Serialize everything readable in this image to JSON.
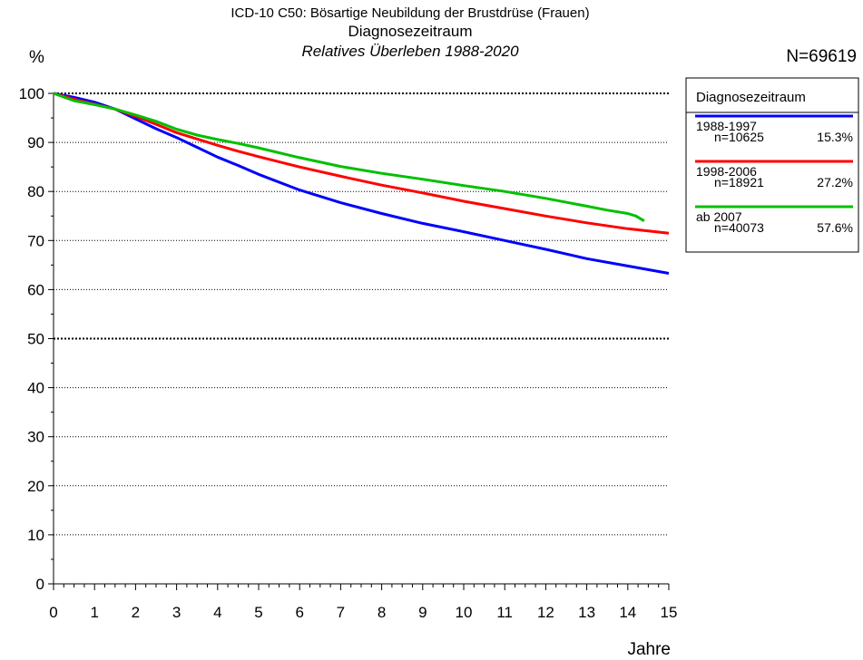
{
  "chart_data": {
    "type": "line",
    "title": "ICD-10 C50: Bösartige Neubildung der Brustdrüse (Frauen)",
    "subtitle": "Diagnosezeitraum",
    "subtitle2": "Relatives Überleben 1988-2020",
    "total_n": "N=69619",
    "xlabel": "Jahre",
    "ylabel": "%",
    "xlim": [
      0,
      15
    ],
    "ylim": [
      0,
      100
    ],
    "xticks": [
      "0",
      "1",
      "2",
      "3",
      "4",
      "5",
      "6",
      "7",
      "8",
      "9",
      "10",
      "11",
      "12",
      "13",
      "14",
      "15"
    ],
    "yticks": [
      "0",
      "10",
      "20",
      "30",
      "40",
      "50",
      "60",
      "70",
      "80",
      "90",
      "100"
    ],
    "grid": "horizontal dotted lines every 10%",
    "legend": {
      "title": "Diagnosezeitraum",
      "placement": "right",
      "items": [
        {
          "label": "1988-1997",
          "n": "n=10625",
          "pct": "15.3%",
          "color": "#0000ff"
        },
        {
          "label": "1998-2006",
          "n": "n=18921",
          "pct": "27.2%",
          "color": "#ff0000"
        },
        {
          "label": "ab 2007",
          "n": "n=40073",
          "pct": "57.6%",
          "color": "#00c000"
        }
      ]
    },
    "series": [
      {
        "name": "1988-1997",
        "color": "#0000ff",
        "x": [
          0,
          0.5,
          1,
          1.5,
          2,
          2.5,
          3,
          3.5,
          4,
          4.5,
          5,
          6,
          7,
          8,
          9,
          10,
          11,
          12,
          13,
          14,
          15
        ],
        "y": [
          100,
          99.2,
          98.2,
          96.8,
          94.8,
          92.8,
          91.0,
          89.0,
          87.0,
          85.3,
          83.5,
          80.3,
          77.7,
          75.5,
          73.5,
          71.8,
          70.0,
          68.2,
          66.3,
          64.8,
          63.3
        ]
      },
      {
        "name": "1998-2006",
        "color": "#ff0000",
        "x": [
          0,
          0.5,
          1,
          1.5,
          2,
          2.5,
          3,
          3.5,
          4,
          4.5,
          5,
          6,
          7,
          8,
          9,
          10,
          11,
          12,
          13,
          14,
          15
        ],
        "y": [
          100,
          98.8,
          97.8,
          96.8,
          95.3,
          93.7,
          92.0,
          90.7,
          89.4,
          88.2,
          87.1,
          85.0,
          83.1,
          81.3,
          79.7,
          78.0,
          76.5,
          75.0,
          73.6,
          72.4,
          71.5
        ]
      },
      {
        "name": "ab 2007",
        "color": "#00c000",
        "x": [
          0,
          0.5,
          1,
          1.5,
          2,
          2.5,
          3,
          3.5,
          4,
          4.5,
          5,
          6,
          7,
          8,
          9,
          10,
          11,
          12,
          13,
          13.5,
          14,
          14.2,
          14.4
        ],
        "y": [
          100,
          98.5,
          97.7,
          96.8,
          95.6,
          94.3,
          92.7,
          91.5,
          90.6,
          89.8,
          88.9,
          86.9,
          85.1,
          83.7,
          82.5,
          81.2,
          80.0,
          78.6,
          77.0,
          76.2,
          75.5,
          75.0,
          74.0
        ]
      }
    ]
  }
}
